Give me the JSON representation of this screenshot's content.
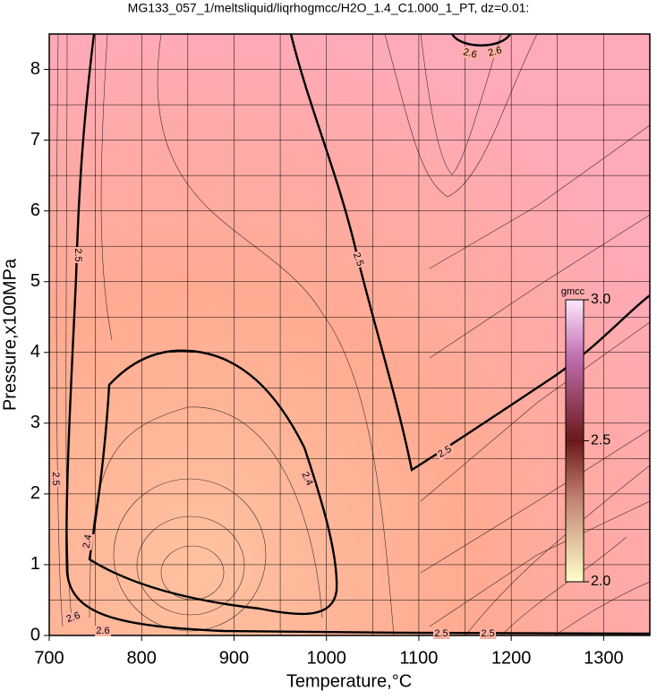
{
  "chart_data": {
    "type": "contour",
    "title": "MG133_057_1/meltsliquid/liqrhogmcc/H2O_1.4_C1.000_1_PT, dz=0.01:",
    "x_label": "Temperature,°C",
    "y_label": "Pressure,x100MPa",
    "xlim": [
      700,
      1350
    ],
    "xticks": [
      700,
      800,
      900,
      1000,
      1100,
      1200,
      1300
    ],
    "ylim": [
      0,
      8.5
    ],
    "yticks": [
      0,
      1,
      2,
      3,
      4,
      5,
      6,
      7,
      8
    ],
    "grid": true,
    "contour_levels": [
      2.4,
      2.5,
      2.6
    ],
    "colorbar": {
      "label": "gmcc",
      "lim": [
        2,
        3
      ],
      "ticks": [
        {
          "value": 2,
          "label": "2.0"
        },
        2.5,
        {
          "value": 3,
          "label": "3.0"
        }
      ]
    }
  }
}
